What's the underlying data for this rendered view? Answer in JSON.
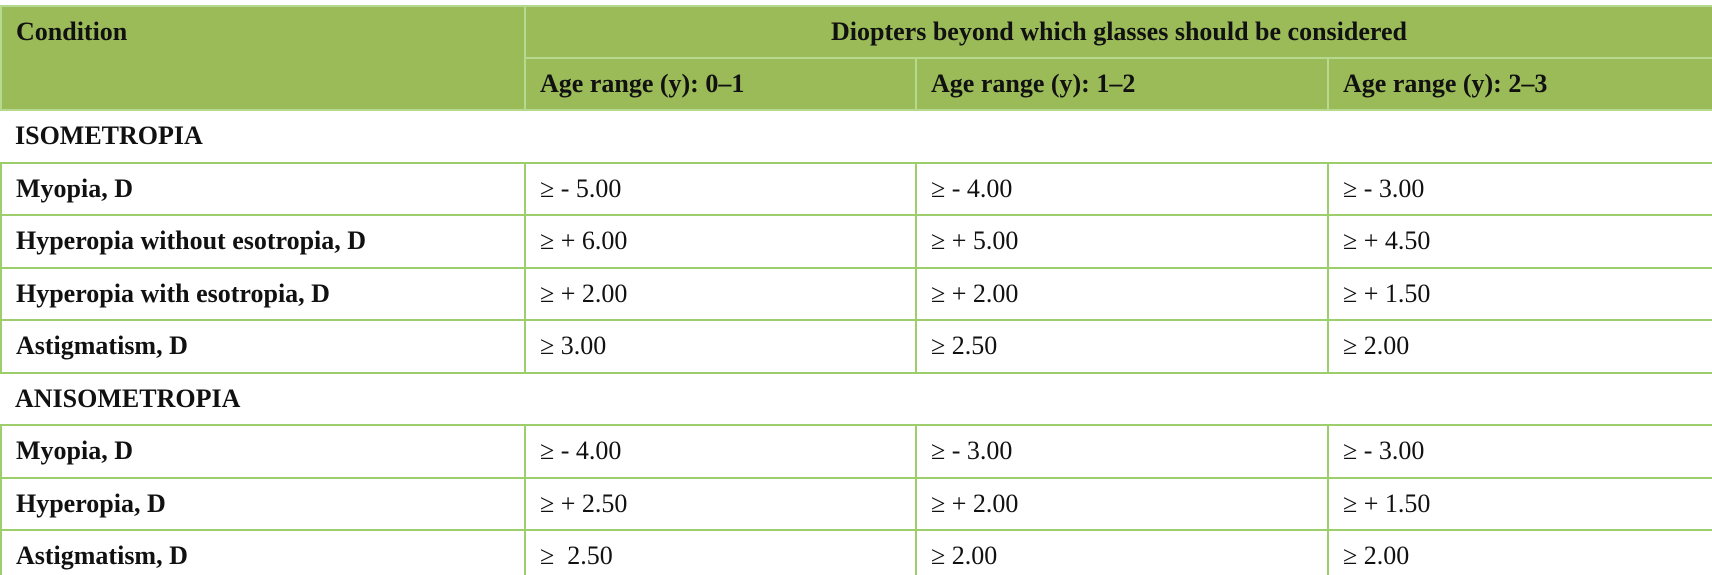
{
  "header": {
    "condition": "Condition",
    "group": "Diopters beyond which glasses should be considered",
    "age_ranges": [
      "Age range (y): 0–1",
      "Age range (y): 1–2",
      "Age range (y): 2–3"
    ]
  },
  "sections": [
    {
      "title": "ISOMETROPIA",
      "rows": [
        {
          "condition": "Myopia, D",
          "values": [
            "≥ - 5.00",
            "≥ - 4.00",
            "≥ - 3.00"
          ]
        },
        {
          "condition": "Hyperopia without esotropia, D",
          "values": [
            "≥ + 6.00",
            "≥ + 5.00",
            "≥ + 4.50"
          ]
        },
        {
          "condition": "Hyperopia with esotropia, D",
          "values": [
            "≥ + 2.00",
            "≥ + 2.00",
            "≥ + 1.50"
          ]
        },
        {
          "condition": "Astigmatism, D",
          "values": [
            "≥ 3.00",
            "≥ 2.50",
            "≥ 2.00"
          ]
        }
      ]
    },
    {
      "title": "ANISOMETROPIA",
      "rows": [
        {
          "condition": "Myopia, D",
          "values": [
            "≥ - 4.00",
            "≥ - 3.00",
            "≥ - 3.00"
          ]
        },
        {
          "condition": "Hyperopia, D",
          "values": [
            "≥ + 2.50",
            "≥ + 2.00",
            "≥ + 1.50"
          ]
        },
        {
          "condition": "Astigmatism, D",
          "values": [
            "≥  2.50",
            "≥ 2.00",
            "≥ 2.00"
          ]
        }
      ]
    }
  ]
}
